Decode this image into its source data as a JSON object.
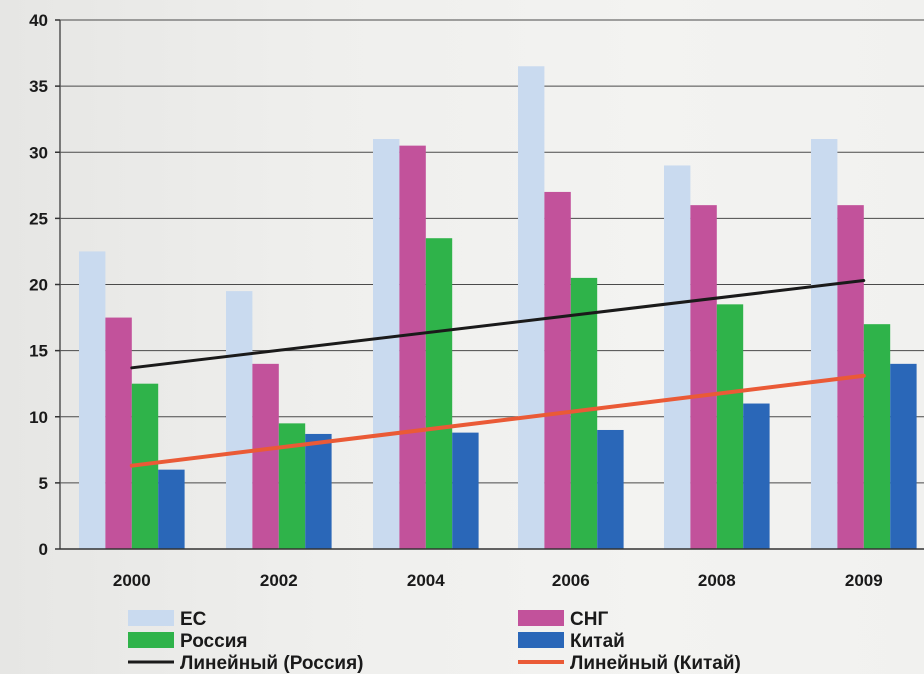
{
  "chart_data": {
    "type": "bar",
    "categories": [
      "2000",
      "2002",
      "2004",
      "2006",
      "2008",
      "2009"
    ],
    "series": [
      {
        "name": "ЕС",
        "color": "#c9daef",
        "values": [
          22.5,
          19.5,
          31,
          36.5,
          29,
          31
        ]
      },
      {
        "name": "СНГ",
        "color": "#c2529b",
        "values": [
          17.5,
          14,
          30.5,
          27,
          26,
          26
        ]
      },
      {
        "name": "Россия",
        "color": "#2fb34a",
        "values": [
          12.5,
          9.5,
          23.5,
          20.5,
          18.5,
          17
        ]
      },
      {
        "name": "Китай",
        "color": "#2a67b8",
        "values": [
          6,
          8.7,
          8.8,
          9,
          11,
          14
        ]
      }
    ],
    "trendlines": [
      {
        "name": "Линейный (Россия)",
        "color": "#1a1a1a",
        "values": [
          13.7,
          14.9,
          16.1,
          17.4,
          18.9,
          20.3
        ]
      },
      {
        "name": "Линейный (Китай)",
        "color": "#ea5a36",
        "values": [
          6.3,
          7.6,
          9.0,
          10.3,
          11.7,
          13.1
        ]
      }
    ],
    "y_ticks": [
      "0",
      "5",
      "10",
      "15",
      "20",
      "25",
      "30",
      "35",
      "40"
    ],
    "ylim": [
      0,
      40
    ],
    "grid": true,
    "legend_position": "bottom",
    "title": "",
    "xlabel": "",
    "ylabel": ""
  }
}
